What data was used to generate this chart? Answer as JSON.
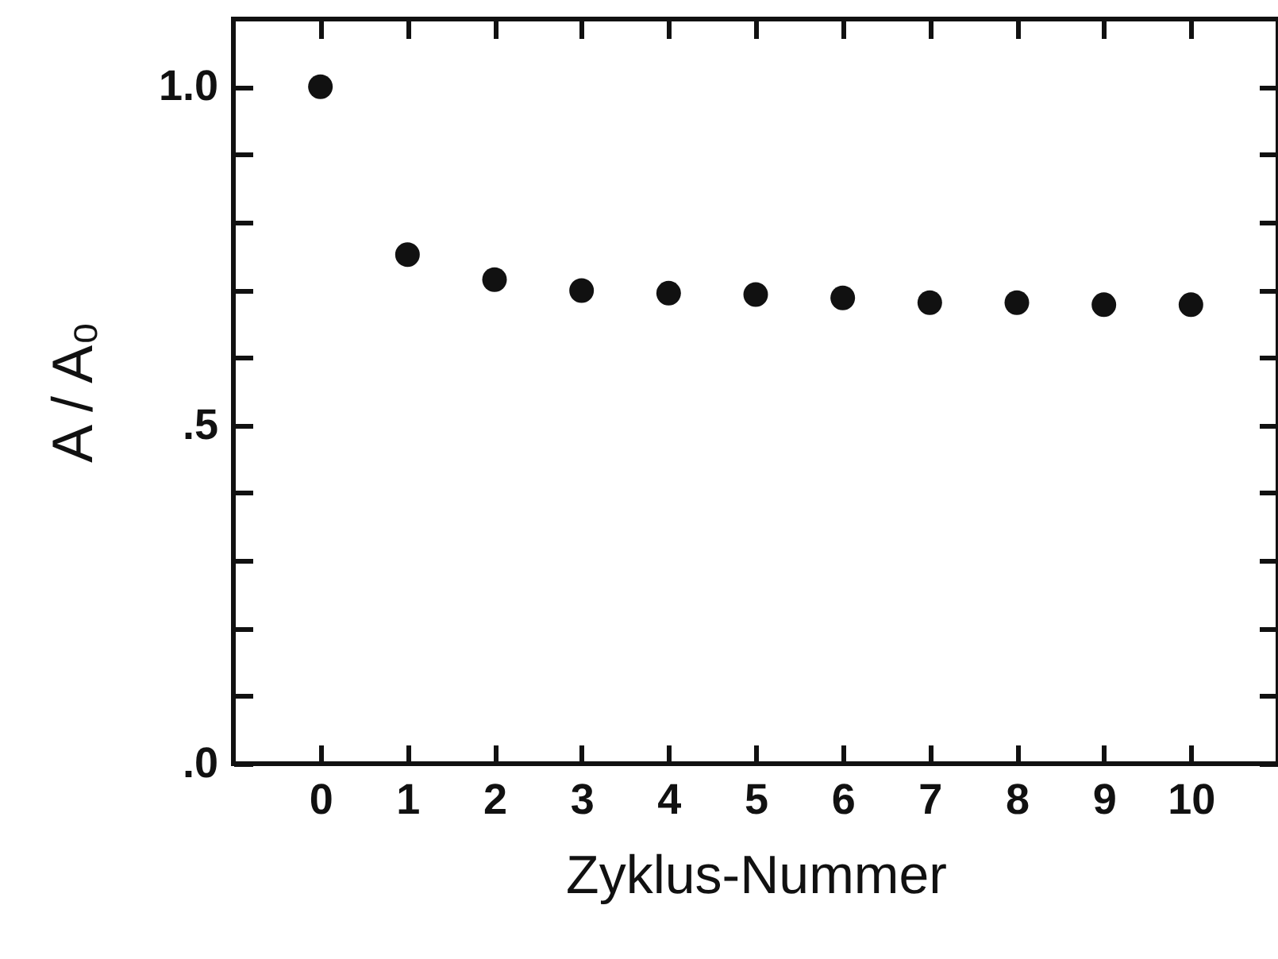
{
  "chart_data": {
    "type": "scatter",
    "xlabel": "Zyklus-Nummer",
    "ylabel": "A / A₀",
    "x": [
      0,
      1,
      2,
      3,
      4,
      5,
      6,
      7,
      8,
      9,
      10
    ],
    "series": [
      {
        "color": "#111111",
        "values": [
          1.0,
          0.752,
          0.715,
          0.699,
          0.695,
          0.693,
          0.688,
          0.681,
          0.681,
          0.678,
          0.678
        ]
      }
    ],
    "marker": "circle",
    "xlim": [
      -1,
      11
    ],
    "xticks": [
      0,
      1,
      2,
      3,
      4,
      5,
      6,
      7,
      8,
      9,
      10
    ],
    "ylim": [
      0,
      1.1
    ],
    "yticks": [
      {
        "value": 0,
        "label": ".0"
      },
      {
        "value": 0.1,
        "label": null
      },
      {
        "value": 0.2,
        "label": null
      },
      {
        "value": 0.3,
        "label": null
      },
      {
        "value": 0.4,
        "label": null
      },
      {
        "value": 0.5,
        "label": ".5"
      },
      {
        "value": 0.6,
        "label": null
      },
      {
        "value": 0.7,
        "label": null
      },
      {
        "value": 0.8,
        "label": null
      },
      {
        "value": 0.9,
        "label": null
      },
      {
        "value": 1.0,
        "label": "1.0"
      }
    ]
  }
}
